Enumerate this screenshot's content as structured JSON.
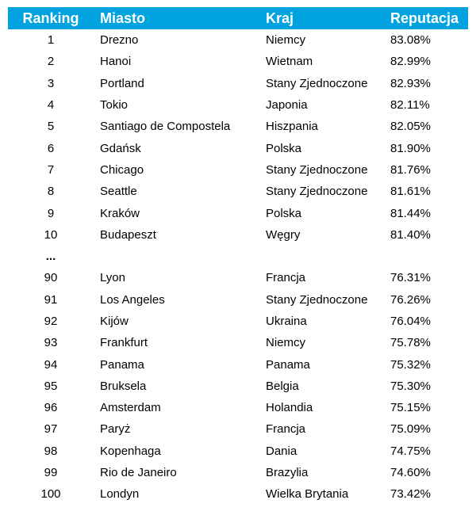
{
  "table": {
    "headers": {
      "rank": "Ranking",
      "city": "Miasto",
      "country": "Kraj",
      "reputation": "Reputacja"
    },
    "rows": [
      {
        "rank": "1",
        "city": "Drezno",
        "country": "Niemcy",
        "reputation": "83.08%"
      },
      {
        "rank": "2",
        "city": "Hanoi",
        "country": "Wietnam",
        "reputation": "82.99%"
      },
      {
        "rank": "3",
        "city": "Portland",
        "country": "Stany Zjednoczone",
        "reputation": "82.93%"
      },
      {
        "rank": "4",
        "city": "Tokio",
        "country": "Japonia",
        "reputation": "82.11%"
      },
      {
        "rank": "5",
        "city": "Santiago de Compostela",
        "country": "Hiszpania",
        "reputation": "82.05%"
      },
      {
        "rank": "6",
        "city": "Gdańsk",
        "country": "Polska",
        "reputation": "81.90%"
      },
      {
        "rank": "7",
        "city": "Chicago",
        "country": "Stany Zjednoczone",
        "reputation": "81.76%"
      },
      {
        "rank": "8",
        "city": "Seattle",
        "country": "Stany Zjednoczone",
        "reputation": "81.61%"
      },
      {
        "rank": "9",
        "city": "Kraków",
        "country": "Polska",
        "reputation": "81.44%"
      },
      {
        "rank": "10",
        "city": "Budapeszt",
        "country": "Węgry",
        "reputation": "81.40%"
      },
      {
        "rank": "...",
        "city": "",
        "country": "",
        "reputation": ""
      },
      {
        "rank": "90",
        "city": "Lyon",
        "country": "Francja",
        "reputation": "76.31%"
      },
      {
        "rank": "91",
        "city": "Los Angeles",
        "country": "Stany Zjednoczone",
        "reputation": "76.26%"
      },
      {
        "rank": "92",
        "city": "Kijów",
        "country": "Ukraina",
        "reputation": "76.04%"
      },
      {
        "rank": "93",
        "city": "Frankfurt",
        "country": "Niemcy",
        "reputation": "75.78%"
      },
      {
        "rank": "94",
        "city": "Panama",
        "country": "Panama",
        "reputation": "75.32%"
      },
      {
        "rank": "95",
        "city": "Bruksela",
        "country": "Belgia",
        "reputation": "75.30%"
      },
      {
        "rank": "96",
        "city": "Amsterdam",
        "country": "Holandia",
        "reputation": "75.15%"
      },
      {
        "rank": "97",
        "city": "Paryż",
        "country": "Francja",
        "reputation": "75.09%"
      },
      {
        "rank": "98",
        "city": "Kopenhaga",
        "country": "Dania",
        "reputation": "74.75%"
      },
      {
        "rank": "99",
        "city": "Rio de Janeiro",
        "country": "Brazylia",
        "reputation": "74.60%"
      },
      {
        "rank": "100",
        "city": "Londyn",
        "country": "Wielka Brytania",
        "reputation": "73.42%"
      }
    ]
  },
  "colors": {
    "header_bg": "#00a3e0",
    "header_text": "#ffffff"
  }
}
